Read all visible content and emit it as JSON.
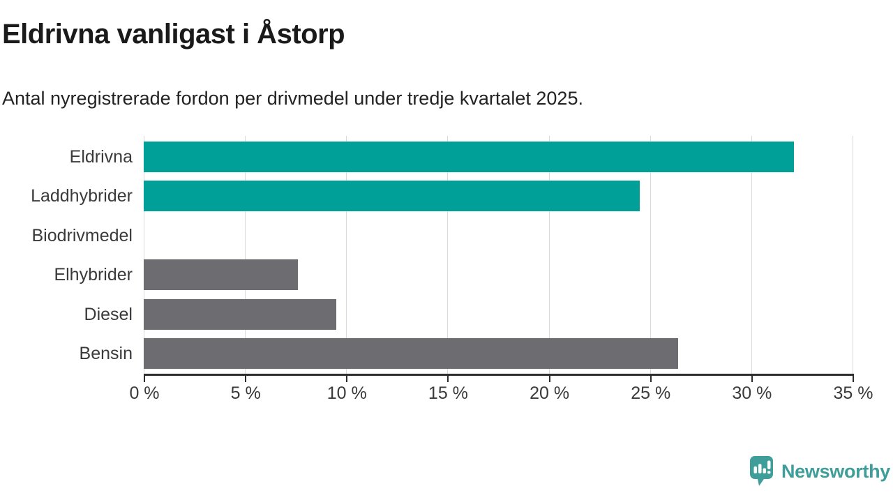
{
  "title": "Eldrivna vanligast i Åstorp",
  "subtitle": "Antal nyregistrerade fordon per drivmedel under tredje kvartalet 2025.",
  "chart_data": {
    "type": "bar",
    "orientation": "horizontal",
    "title": "Eldrivna vanligast i Åstorp",
    "subtitle": "Antal nyregistrerade fordon per drivmedel under tredje kvartalet 2025.",
    "categories": [
      "Eldrivna",
      "Laddhybrider",
      "Biodrivmedel",
      "Elhybrider",
      "Diesel",
      "Bensin"
    ],
    "values": [
      32.1,
      24.5,
      0,
      7.6,
      9.5,
      26.4
    ],
    "unit": "%",
    "xlim": [
      0,
      35
    ],
    "x_tick_values": [
      0,
      5,
      10,
      15,
      20,
      25,
      30,
      35
    ],
    "x_tick_labels": [
      "0 %",
      "5 %",
      "10 %",
      "15 %",
      "20 %",
      "25 %",
      "30 %",
      "35 %"
    ],
    "grid": true,
    "legend": false,
    "bar_colors": [
      "#00A098",
      "#00A098",
      "#6C6C71",
      "#6C6C71",
      "#6C6C71",
      "#6C6C71"
    ],
    "highlight_color": "#00A098",
    "default_color": "#6C6C71",
    "gridline_color": "#d9d9d9",
    "axis_color": "#2d2d2d",
    "label_color": "#3a3a3a"
  },
  "footer": {
    "brand": "Newsworthy",
    "brand_color": "#3F9E99"
  }
}
